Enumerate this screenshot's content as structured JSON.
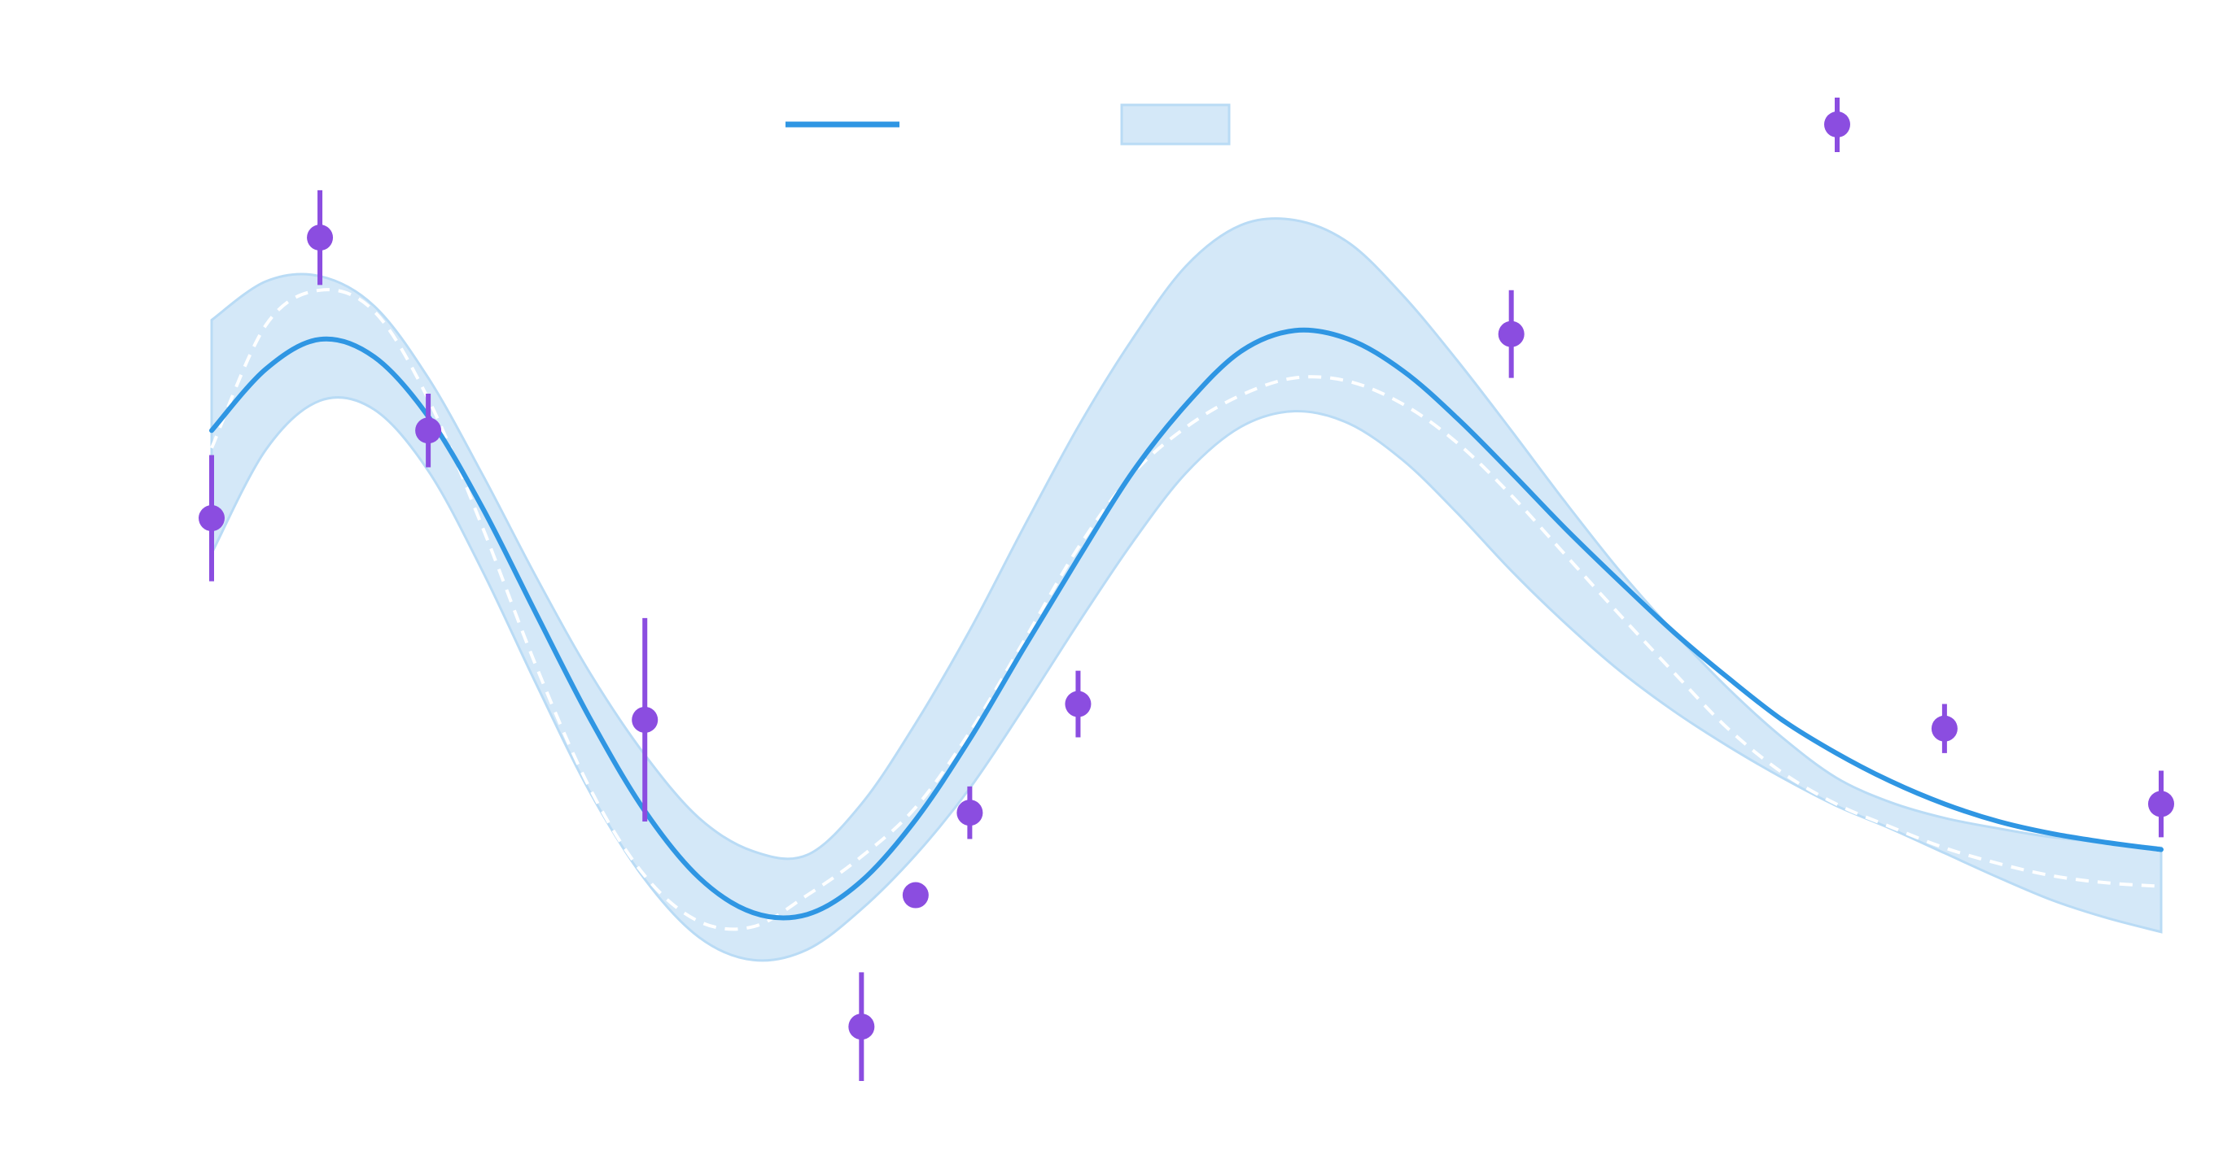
{
  "chart_data": {
    "type": "line",
    "title": "",
    "xlabel": "",
    "ylabel": "",
    "xlim": [
      0,
      9
    ],
    "ylim": [
      -2.8,
      3.3
    ],
    "grid": false,
    "legend": {
      "placement": "top-center",
      "entries": [
        {
          "label": "",
          "kind": "line"
        },
        {
          "label": "",
          "kind": "band"
        },
        {
          "label": "",
          "kind": "errorbar"
        }
      ]
    },
    "series": [
      {
        "kind": "mean",
        "x": [
          0.0,
          0.25,
          0.5,
          0.75,
          1.0,
          1.25,
          1.5,
          1.75,
          2.0,
          2.25,
          2.5,
          2.75,
          3.0,
          3.25,
          3.5,
          3.75,
          4.0,
          4.25,
          4.5,
          4.75,
          5.0,
          5.25,
          5.5,
          5.75,
          6.0,
          6.25,
          6.5,
          6.75,
          7.0,
          7.25,
          7.5,
          7.75,
          8.0,
          8.25,
          8.5,
          8.75,
          9.0
        ],
        "y": [
          1.1,
          1.45,
          1.62,
          1.52,
          1.18,
          0.66,
          0.05,
          -0.55,
          -1.07,
          -1.45,
          -1.65,
          -1.66,
          -1.47,
          -1.12,
          -0.66,
          -0.14,
          0.37,
          0.86,
          1.25,
          1.55,
          1.67,
          1.62,
          1.44,
          1.17,
          0.86,
          0.54,
          0.24,
          -0.05,
          -0.31,
          -0.55,
          -0.74,
          -0.9,
          -1.03,
          -1.13,
          -1.2,
          -1.25,
          -1.29
        ]
      },
      {
        "kind": "band",
        "x": [
          0.0,
          0.25,
          0.5,
          0.75,
          1.0,
          1.25,
          1.5,
          1.75,
          2.0,
          2.25,
          2.5,
          2.75,
          3.0,
          3.25,
          3.5,
          3.75,
          4.0,
          4.25,
          4.5,
          4.75,
          5.0,
          5.25,
          5.5,
          5.75,
          6.0,
          6.25,
          6.5,
          6.75,
          7.0,
          7.25,
          7.5,
          7.75,
          8.0,
          8.25,
          8.5,
          8.75,
          9.0
        ],
        "upper": [
          1.73,
          1.95,
          1.98,
          1.81,
          1.4,
          0.85,
          0.26,
          -0.29,
          -0.75,
          -1.11,
          -1.3,
          -1.32,
          -1.03,
          -0.57,
          -0.04,
          0.55,
          1.12,
          1.62,
          2.04,
          2.27,
          2.3,
          2.17,
          1.87,
          1.5,
          1.1,
          0.69,
          0.3,
          -0.05,
          -0.37,
          -0.65,
          -0.88,
          -1.02,
          -1.11,
          -1.17,
          -1.22,
          -1.25,
          -1.28
        ],
        "lower": [
          0.4,
          0.99,
          1.27,
          1.22,
          0.87,
          0.3,
          -0.35,
          -0.97,
          -1.46,
          -1.79,
          -1.92,
          -1.86,
          -1.63,
          -1.32,
          -0.94,
          -0.48,
          0.0,
          0.46,
          0.86,
          1.12,
          1.21,
          1.14,
          0.93,
          0.63,
          0.3,
          0.0,
          -0.27,
          -0.5,
          -0.7,
          -0.88,
          -1.04,
          -1.17,
          -1.31,
          -1.45,
          -1.58,
          -1.68,
          -1.76
        ]
      },
      {
        "kind": "true",
        "style": "dashed",
        "x": [
          0.0,
          0.25,
          0.5,
          0.75,
          1.0,
          1.25,
          1.5,
          1.75,
          2.0,
          2.25,
          2.5,
          2.75,
          3.0,
          3.25,
          3.5,
          3.75,
          4.0,
          4.25,
          4.5,
          4.75,
          5.0,
          5.25,
          5.5,
          5.75,
          6.0,
          6.25,
          6.5,
          6.75,
          7.0,
          7.25,
          7.5,
          7.75,
          8.0,
          8.25,
          8.5,
          8.75,
          9.0
        ],
        "y": [
          1.0,
          1.7,
          1.9,
          1.78,
          1.28,
          0.55,
          -0.25,
          -0.95,
          -1.44,
          -1.7,
          -1.73,
          -1.55,
          -1.33,
          -1.05,
          -0.62,
          -0.1,
          0.43,
          0.85,
          1.12,
          1.3,
          1.4,
          1.38,
          1.25,
          1.03,
          0.73,
          0.39,
          0.05,
          -0.28,
          -0.6,
          -0.85,
          -1.03,
          -1.16,
          -1.28,
          -1.37,
          -1.44,
          -1.48,
          -1.5
        ]
      },
      {
        "kind": "observations",
        "x": [
          0.0,
          0.5,
          1.0,
          2.0,
          3.0,
          3.25,
          3.5,
          4.0,
          6.0,
          8.0,
          9.0
        ],
        "y": [
          0.6,
          2.2,
          1.1,
          -0.55,
          -2.3,
          -1.55,
          -1.08,
          -0.46,
          1.65,
          -0.6,
          -1.03
        ],
        "err": [
          0.36,
          0.27,
          0.21,
          0.58,
          0.31,
          0.0,
          0.15,
          0.19,
          0.25,
          0.14,
          0.19
        ]
      }
    ],
    "colors": {
      "mean": "#2f96e3",
      "band_fill": "#d4e8f8",
      "band_edge": "#b9dbf5",
      "true_line": "#ffffff",
      "observations": "#8b4de0"
    }
  }
}
